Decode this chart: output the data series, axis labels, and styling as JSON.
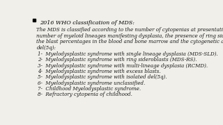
{
  "background_color": "#f0efea",
  "bullet_title": "2016 WHO classification of MDS:",
  "intro_lines": [
    "The MDS is classified according to the number of cytopenias at presentation, the",
    "number of myeloid lineages manifesting dysplasia, the presence of ring sideroblasts,",
    "the blast percentages in the blood and bone marrow and the cytogenetic abnormality,",
    "del(5q):"
  ],
  "items": [
    "1-  Myelodysplastic syndrome with single lineage dysplasia (MDS-SLD).",
    "2-  Myelodysplastic syndrome with ring sideroblasts (MDS-RS).",
    "3-  Myelodysplastic syndrome with multi-lineage dysplasia (RCMD).",
    "4-  Myelodysplastic syndrome with excess blasts.",
    "5-  Myelodysplastic syndrome with isolated del(5q).",
    "6-  Myelodysplastic syndrome unclassified.",
    "7-  Childhood Myelodysplastic syndrome.",
    "8-  Refractory cytopenia of childhood."
  ],
  "title_fontsize": 5.8,
  "body_fontsize": 5.1,
  "item_fontsize": 5.1,
  "text_color": "#1a1a1a",
  "title_color": "#000000",
  "bullet_color": "#000000"
}
